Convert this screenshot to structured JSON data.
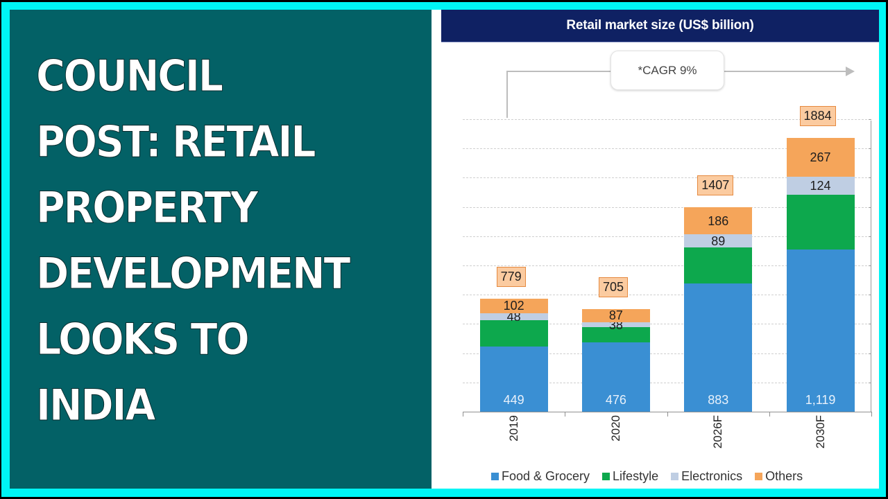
{
  "headline": {
    "lines": [
      "COUNCIL",
      "POST: RETAIL",
      "PROPERTY",
      "DEVELOPMENT",
      "LOOKS TO",
      "INDIA"
    ]
  },
  "colors": {
    "frame": "#00F5F5",
    "teal_panel": "#036166",
    "header_bg": "#0F2163",
    "food_grocery": "#3A8FD3",
    "lifestyle": "#0DA84D",
    "electronics": "#BFCEE3",
    "others": "#F5A55A",
    "total_box_fill": "#FBCBA0",
    "total_box_border": "#E5893F"
  },
  "annotation": {
    "cagr_label": "*CAGR 9%"
  },
  "chart_data": {
    "type": "bar",
    "stacked": true,
    "title": "Retail market size (US$ billion)",
    "xlabel": "",
    "ylabel": "",
    "categories": [
      "2019",
      "2020",
      "2026F",
      "2030F"
    ],
    "series": [
      {
        "name": "Food & Grocery",
        "values": [
          449,
          476,
          883,
          1119
        ],
        "labels": [
          "449",
          "476",
          "883",
          "1,119"
        ]
      },
      {
        "name": "Lifestyle",
        "values": [
          180,
          104,
          249,
          374
        ],
        "labels": [
          null,
          null,
          null,
          null
        ]
      },
      {
        "name": "Electronics",
        "values": [
          48,
          38,
          89,
          124
        ],
        "labels": [
          "48",
          "38",
          "89",
          "124"
        ]
      },
      {
        "name": "Others",
        "values": [
          102,
          87,
          186,
          267
        ],
        "labels": [
          "102",
          "87",
          "186",
          "267"
        ]
      }
    ],
    "totals": [
      779,
      705,
      1407,
      1884
    ],
    "annotations": [
      "*CAGR 9%"
    ],
    "grid": true,
    "gridlines": 10,
    "legend_position": "bottom",
    "ylim": [
      0,
      2000
    ]
  },
  "legend": [
    {
      "label": "Food & Grocery",
      "color": "#3A8FD3"
    },
    {
      "label": "Lifestyle",
      "color": "#0DA84D"
    },
    {
      "label": "Electronics",
      "color": "#BFCEE3"
    },
    {
      "label": "Others",
      "color": "#F5A55A"
    }
  ]
}
